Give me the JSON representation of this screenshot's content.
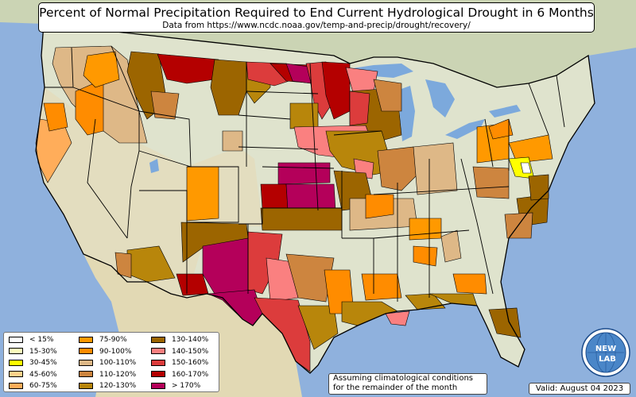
{
  "title": "Percent of Normal Precipitation Required to End Current Hydrological Drought in 6 Months",
  "subtitle": "Data from https://www.ncdc.noaa.gov/temp-and-precip/drought/recovery/",
  "note_lines": [
    "Assuming climatological conditions",
    "for the remainder of the month"
  ],
  "valid": "Valid: August 04 2023",
  "logo_text": {
    "top": "NEW",
    "bottom": "LAB"
  },
  "colors": {
    "ocean": "#8fb1dd",
    "land": "#dfe3cd",
    "west_land": "#e3ddbf",
    "canada": "#cbd4b4",
    "mexico": "#e2d9b4",
    "lake": "#7ca9dc",
    "border": "#000000"
  },
  "legend": [
    {
      "label": "< 15%",
      "color": "#ffffff"
    },
    {
      "label": "15-30%",
      "color": "#ffffbe"
    },
    {
      "label": "30-45%",
      "color": "#ffff00"
    },
    {
      "label": "45-60%",
      "color": "#ffd28c"
    },
    {
      "label": "60-75%",
      "color": "#ffad5a"
    },
    {
      "label": "75-90%",
      "color": "#ff9900"
    },
    {
      "label": "90-100%",
      "color": "#ff8c00"
    },
    {
      "label": "100-110%",
      "color": "#deb887"
    },
    {
      "label": "110-120%",
      "color": "#cd853f"
    },
    {
      "label": "120-130%",
      "color": "#b8860b"
    },
    {
      "label": "130-140%",
      "color": "#9c6500"
    },
    {
      "label": "140-150%",
      "color": "#fa8080"
    },
    {
      "label": "150-160%",
      "color": "#dc3c3c"
    },
    {
      "label": "160-170%",
      "color": "#b40000"
    },
    {
      "label": "> 170%",
      "color": "#b4005a"
    }
  ]
}
